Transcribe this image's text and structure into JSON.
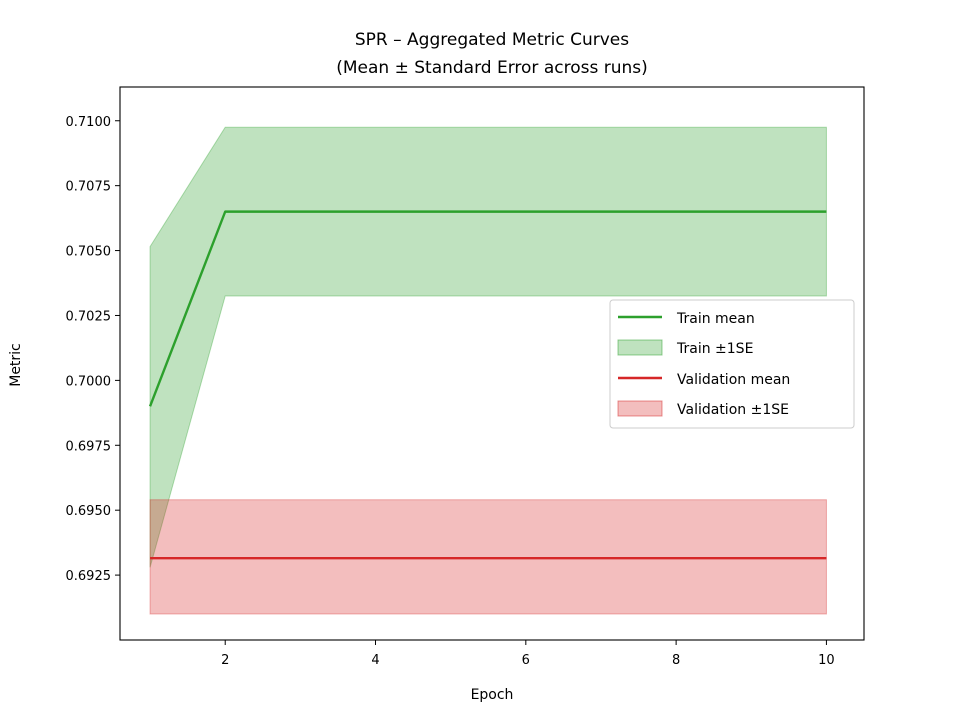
{
  "chart_data": {
    "type": "line",
    "title_line1": "SPR – Aggregated Metric Curves",
    "title_line2": "(Mean ± Standard Error across runs)",
    "xlabel": "Epoch",
    "ylabel": "Metric",
    "xlim": [
      0.6,
      10.5
    ],
    "ylim": [
      0.69,
      0.7113
    ],
    "xticks": [
      2,
      4,
      6,
      8,
      10
    ],
    "yticks": [
      0.6925,
      0.695,
      0.6975,
      0.7,
      0.7025,
      0.705,
      0.7075,
      0.71
    ],
    "ytick_labels": [
      "0.6925",
      "0.6950",
      "0.6975",
      "0.7000",
      "0.7025",
      "0.7050",
      "0.7075",
      "0.7100"
    ],
    "grid": false,
    "legend_position": "center-right",
    "x": [
      1,
      2,
      3,
      4,
      5,
      6,
      7,
      8,
      9,
      10
    ],
    "series": [
      {
        "name": "Train mean",
        "band_name": "Train ±1SE",
        "color": "#2ca02c",
        "mean": [
          0.699,
          0.7065,
          0.7065,
          0.7065,
          0.7065,
          0.7065,
          0.7065,
          0.7065,
          0.7065,
          0.7065
        ],
        "lower": [
          0.6928,
          0.70325,
          0.70325,
          0.70325,
          0.70325,
          0.70325,
          0.70325,
          0.70325,
          0.70325,
          0.70325
        ],
        "upper": [
          0.70515,
          0.70975,
          0.70975,
          0.70975,
          0.70975,
          0.70975,
          0.70975,
          0.70975,
          0.70975,
          0.70975
        ]
      },
      {
        "name": "Validation mean",
        "band_name": "Validation ±1SE",
        "color": "#d62728",
        "mean": [
          0.69315,
          0.69315,
          0.69315,
          0.69315,
          0.69315,
          0.69315,
          0.69315,
          0.69315,
          0.69315,
          0.69315
        ],
        "lower": [
          0.691,
          0.691,
          0.691,
          0.691,
          0.691,
          0.691,
          0.691,
          0.691,
          0.691,
          0.691
        ],
        "upper": [
          0.6954,
          0.6954,
          0.6954,
          0.6954,
          0.6954,
          0.6954,
          0.6954,
          0.6954,
          0.6954,
          0.6954
        ]
      }
    ]
  }
}
